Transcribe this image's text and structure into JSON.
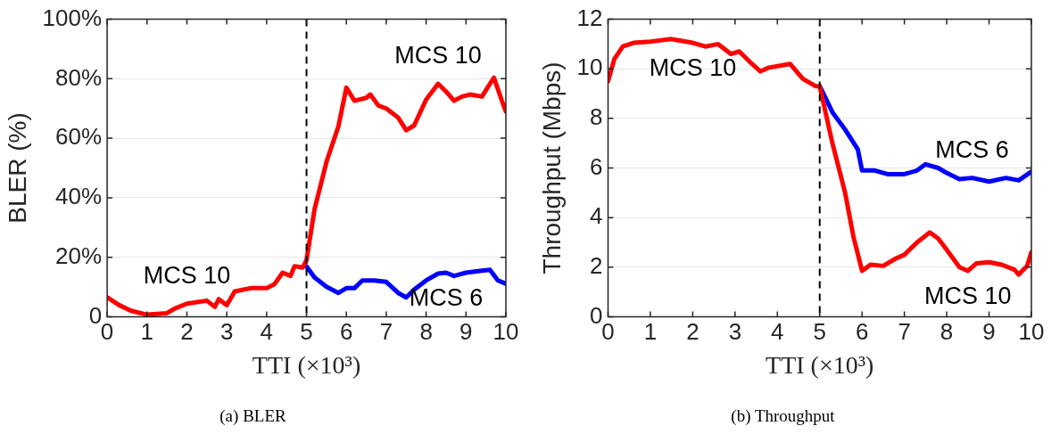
{
  "chart_data": [
    {
      "type": "line",
      "title": "(a) BLER",
      "xlabel": "TTI (×10³)",
      "ylabel": "BLER (%)",
      "xlim": [
        0,
        10
      ],
      "xticks": [
        0,
        1,
        2,
        3,
        4,
        5,
        6,
        7,
        8,
        9,
        10
      ],
      "ylim": [
        0,
        100
      ],
      "yticks": [
        0,
        {
          "value": 20,
          "label": "20%"
        },
        {
          "value": 40,
          "label": "40%"
        },
        {
          "value": 60,
          "label": "60%"
        },
        {
          "value": 80,
          "label": "80%"
        },
        {
          "value": 100,
          "label": "100%"
        }
      ],
      "grid": "y",
      "legend": false,
      "marker": "none",
      "line_style": "solid",
      "series": [
        {
          "color": "#ff0000",
          "x": [
            0,
            0.3,
            0.6,
            1,
            1.5,
            1.7,
            2,
            2.5,
            2.7,
            2.8,
            3,
            3.2,
            3.6,
            4,
            4.2,
            4.4,
            4.6,
            4.7,
            4.9,
            5,
            5.2,
            5.5,
            5.8,
            6,
            6.2,
            6.5,
            6.6,
            6.8,
            7,
            7.3,
            7.5,
            7.7,
            8,
            8.3,
            8.5,
            8.7,
            8.9,
            9.1,
            9.4,
            9.6,
            9.7,
            9.9,
            10
          ],
          "values": [
            6.5,
            3.9,
            2,
            0.7,
            1.2,
            2.8,
            4.4,
            5.4,
            3.3,
            5.9,
            3.9,
            8.5,
            9.6,
            9.6,
            11,
            14.8,
            13.7,
            17,
            16.5,
            19,
            36,
            52,
            64,
            77,
            72.6,
            73.6,
            74.7,
            71,
            70,
            66.9,
            62.7,
            64.3,
            73,
            78.3,
            75.7,
            72.6,
            74,
            74.7,
            74,
            78.3,
            80.4,
            72.6,
            69
          ]
        },
        {
          "color": "#0000ff",
          "x": [
            5,
            5.2,
            5.5,
            5.8,
            6,
            6.2,
            6.4,
            6.7,
            7,
            7.3,
            7.5,
            7.7,
            8,
            8.3,
            8.5,
            8.7,
            9,
            9.3,
            9.6,
            9.8,
            10
          ],
          "values": [
            16.9,
            13.2,
            10.1,
            8,
            9.6,
            9.6,
            12.2,
            12.2,
            11.7,
            8,
            6.5,
            9.1,
            12.2,
            14.5,
            14.8,
            13.7,
            14.8,
            15.3,
            15.8,
            12.2,
            11.1
          ]
        }
      ],
      "ref_lines": [
        {
          "axis": "x",
          "value": 5,
          "color": "#000000",
          "line_style": "dashed"
        }
      ],
      "annotations": [
        {
          "text": "MCS 10",
          "x": 2,
          "y": 4.4
        },
        {
          "text": "MCS 6",
          "x": 8.5,
          "y": 14.8
        },
        {
          "text": "MCS 10",
          "x": 8.3,
          "y": 78.3
        }
      ]
    },
    {
      "type": "line",
      "title": "(b) Throughput",
      "xlabel": "TTI (×10³)",
      "ylabel": "Throughput (Mbps)",
      "xlim": [
        0,
        10
      ],
      "xticks": [
        0,
        1,
        2,
        3,
        4,
        5,
        6,
        7,
        8,
        9,
        10
      ],
      "ylim": [
        0,
        12
      ],
      "yticks": [
        0,
        2,
        4,
        6,
        8,
        10,
        12
      ],
      "grid": "y",
      "legend": false,
      "marker": "none",
      "line_style": "solid",
      "series": [
        {
          "color": "#ff0000",
          "x": [
            0,
            0.15,
            0.35,
            0.6,
            1,
            1.5,
            2,
            2.3,
            2.6,
            2.9,
            3.1,
            3.4,
            3.6,
            3.8,
            4.3,
            4.6,
            4.9,
            5,
            5.3,
            5.6,
            5.8,
            6,
            6.2,
            6.5,
            6.8,
            7,
            7.3,
            7.6,
            7.8,
            8,
            8.3,
            8.5,
            8.7,
            9,
            9.3,
            9.6,
            9.7,
            9.9,
            10
          ],
          "values": [
            9.5,
            10.4,
            10.9,
            11.05,
            11.1,
            11.2,
            11.05,
            10.9,
            11,
            10.6,
            10.7,
            10.2,
            9.9,
            10.05,
            10.2,
            9.6,
            9.3,
            9.3,
            7,
            5,
            3.2,
            1.85,
            2.1,
            2.05,
            2.35,
            2.5,
            3,
            3.4,
            3.15,
            2.7,
            2,
            1.85,
            2.15,
            2.2,
            2.1,
            1.9,
            1.7,
            2.05,
            2.6
          ]
        },
        {
          "color": "#0000ff",
          "x": [
            5,
            5.3,
            5.6,
            5.9,
            6,
            6.3,
            6.6,
            7,
            7.3,
            7.5,
            7.8,
            8,
            8.3,
            8.6,
            9,
            9.4,
            9.7,
            10
          ],
          "values": [
            9.3,
            8.25,
            7.55,
            6.75,
            5.9,
            5.9,
            5.75,
            5.75,
            5.9,
            6.15,
            6,
            5.8,
            5.55,
            5.6,
            5.45,
            5.6,
            5.5,
            5.85
          ]
        }
      ],
      "ref_lines": [
        {
          "axis": "x",
          "value": 5,
          "color": "#000000",
          "line_style": "dashed"
        }
      ],
      "annotations": [
        {
          "text": "MCS 10",
          "x": 2,
          "y": 11.05
        },
        {
          "text": "MCS 6",
          "x": 8.6,
          "y": 5.6
        },
        {
          "text": "MCS 10",
          "x": 8.5,
          "y": 1.85
        }
      ]
    }
  ]
}
